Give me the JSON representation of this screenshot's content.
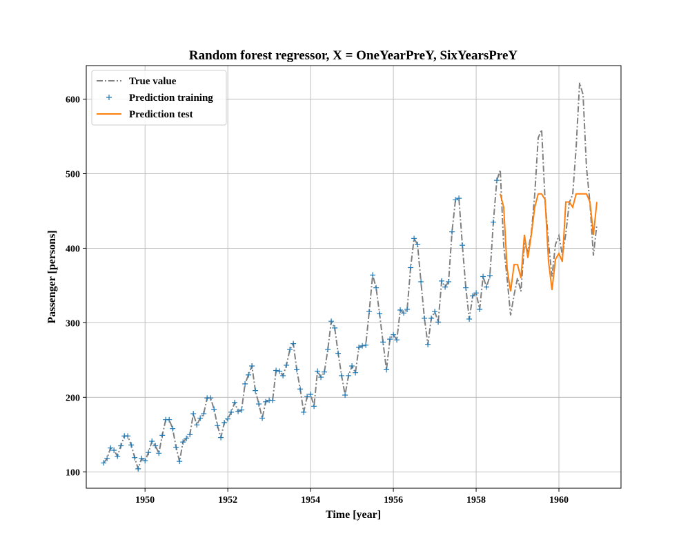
{
  "chart_data": {
    "type": "line",
    "title": "Random forest regressor, X = OneYearPreY, SixYearsPreY",
    "xlabel": "Time [year]",
    "ylabel": "Passenger [persons]",
    "xlim": [
      1948.58,
      1961.5
    ],
    "ylim": [
      78,
      645
    ],
    "xticks": [
      1950,
      1952,
      1954,
      1956,
      1958,
      1960
    ],
    "yticks": [
      100,
      200,
      300,
      400,
      500,
      600
    ],
    "grid": true,
    "legend_position": "top-left",
    "colors": {
      "true_value": "#808080",
      "prediction_training": "#1f77b4",
      "prediction_test": "#ff7f0e"
    },
    "series": [
      {
        "name": "True value",
        "style": "dash-dot",
        "start_year": 1949.0,
        "step": 0.0833333,
        "values": [
          112,
          118,
          132,
          129,
          121,
          135,
          148,
          148,
          136,
          119,
          104,
          118,
          115,
          126,
          141,
          135,
          125,
          149,
          170,
          170,
          158,
          133,
          114,
          140,
          145,
          150,
          178,
          163,
          172,
          178,
          199,
          199,
          184,
          162,
          146,
          166,
          171,
          180,
          193,
          181,
          183,
          218,
          230,
          242,
          209,
          191,
          172,
          194,
          196,
          196,
          236,
          235,
          229,
          243,
          264,
          272,
          237,
          211,
          180,
          201,
          204,
          188,
          235,
          227,
          234,
          264,
          302,
          293,
          259,
          229,
          203,
          229,
          242,
          233,
          267,
          269,
          270,
          315,
          364,
          347,
          312,
          274,
          237,
          278,
          284,
          277,
          317,
          313,
          318,
          374,
          413,
          405,
          355,
          306,
          271,
          306,
          315,
          301,
          356,
          348,
          355,
          422,
          465,
          467,
          404,
          347,
          305,
          336,
          340,
          318,
          362,
          348,
          363,
          435,
          491,
          505,
          404,
          359,
          310,
          337,
          360,
          342,
          406,
          396,
          420,
          472,
          548,
          559,
          463,
          407,
          362,
          405,
          417,
          391,
          419,
          461,
          472,
          535,
          622,
          606,
          508,
          461,
          390,
          432
        ]
      },
      {
        "name": "Prediction training",
        "style": "plus-markers",
        "start_year": 1949.0,
        "step": 0.0833333,
        "values": [
          112,
          118,
          132,
          129,
          121,
          135,
          148,
          148,
          136,
          119,
          104,
          118,
          115,
          126,
          141,
          135,
          125,
          149,
          170,
          170,
          158,
          133,
          114,
          140,
          145,
          150,
          178,
          163,
          172,
          178,
          199,
          199,
          184,
          162,
          146,
          166,
          171,
          180,
          193,
          181,
          183,
          218,
          230,
          242,
          209,
          191,
          172,
          194,
          196,
          196,
          236,
          235,
          229,
          243,
          264,
          272,
          237,
          211,
          180,
          201,
          204,
          188,
          235,
          227,
          234,
          264,
          302,
          293,
          259,
          229,
          203,
          229,
          242,
          233,
          267,
          269,
          270,
          315,
          364,
          347,
          312,
          274,
          237,
          278,
          284,
          277,
          317,
          313,
          318,
          374,
          413,
          405,
          355,
          306,
          271,
          306,
          315,
          301,
          356,
          348,
          355,
          422,
          465,
          467,
          404,
          347,
          305,
          336,
          340,
          318,
          362,
          348,
          363,
          435,
          491
        ]
      },
      {
        "name": "Prediction test",
        "style": "solid",
        "start_year": 1958.5833,
        "step": 0.0833333,
        "values": [
          473,
          455,
          372,
          342,
          378,
          378,
          360,
          418,
          387,
          418,
          455,
          473,
          473,
          465,
          382,
          344,
          385,
          393,
          382,
          462,
          462,
          455,
          473,
          473,
          473,
          473,
          462,
          418,
          462
        ]
      }
    ]
  }
}
